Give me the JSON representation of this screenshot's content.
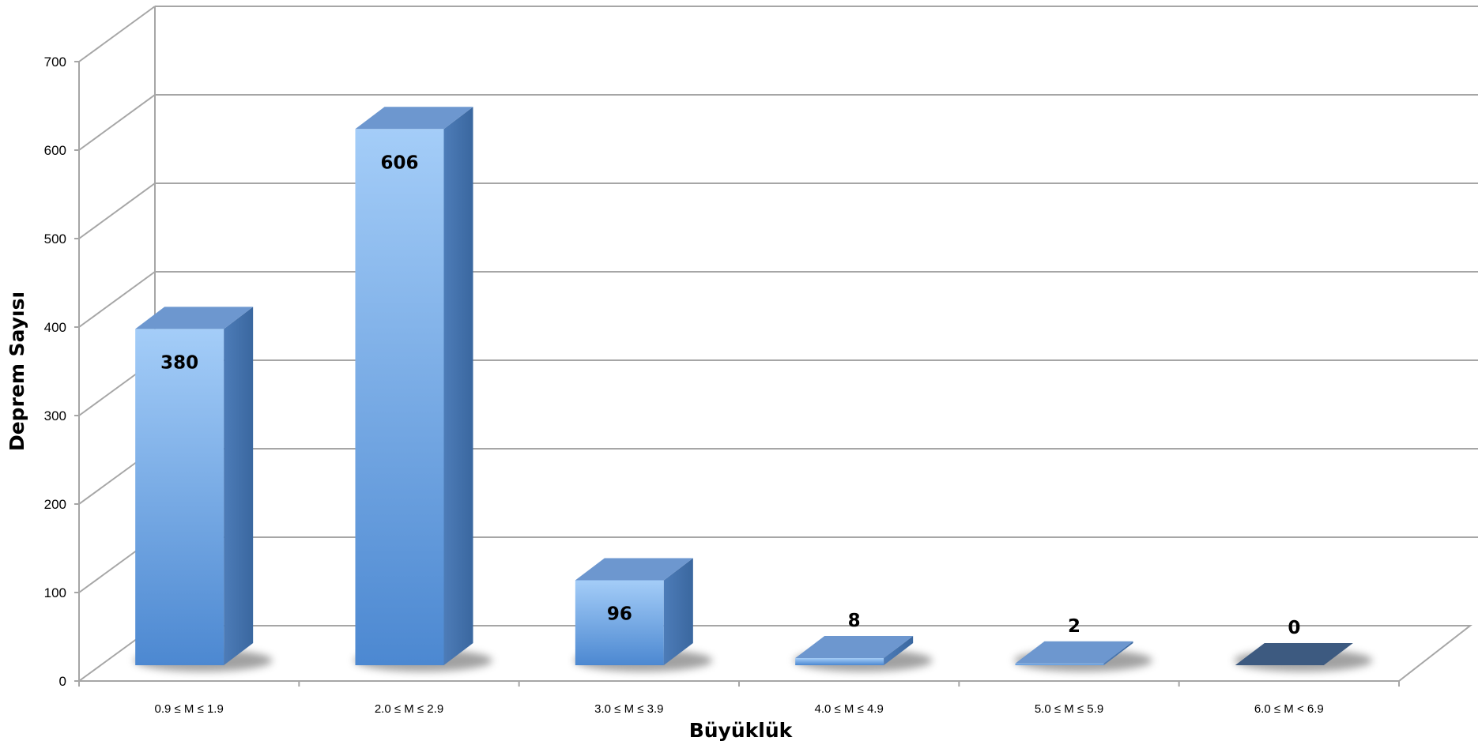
{
  "chart_data": {
    "type": "bar",
    "title": "",
    "xlabel": "Büyüklük",
    "ylabel": "Deprem Sayısı",
    "categories": [
      "0.9 ≤ M ≤ 1.9",
      "2.0 ≤ M ≤ 2.9",
      "3.0 ≤ M ≤ 3.9",
      "4.0 ≤ M ≤ 4.9",
      "5.0 ≤ M ≤ 5.9",
      "6.0 ≤ M < 6.9"
    ],
    "values": [
      380,
      606,
      96,
      8,
      2,
      0
    ],
    "data_labels": [
      "380",
      "606",
      "96",
      "8",
      "2",
      "0"
    ],
    "ylim": [
      0,
      700
    ],
    "yticks": [
      "0",
      "100",
      "200",
      "300",
      "400",
      "500",
      "600",
      "700"
    ],
    "grid": true,
    "style": "3d-column",
    "colors": {
      "bar_light": "#9cc8f7",
      "bar_dark": "#4a86cf",
      "bar_side": "#3f6fa8",
      "bar_top": "#6d97cf",
      "zero_bar": "#3d5a80",
      "grid": "#a6a6a6"
    }
  }
}
